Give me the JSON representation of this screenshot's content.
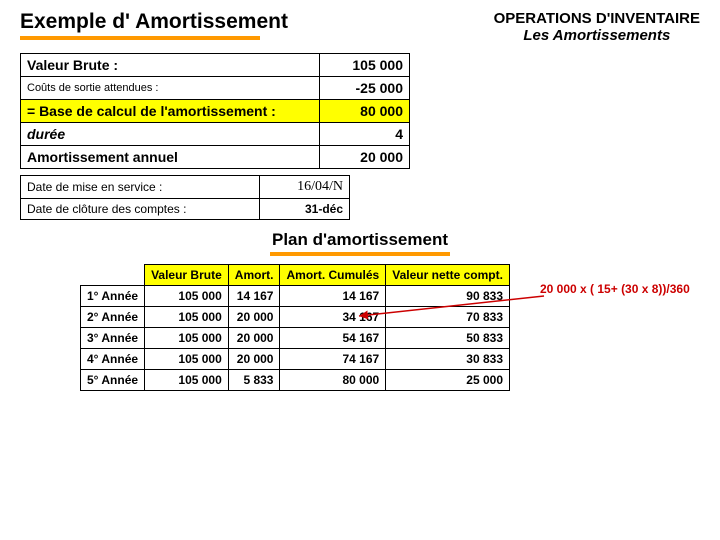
{
  "header": {
    "left_title": "Exemple d' Amortissement",
    "right_line1": "OPERATIONS D'INVENTAIRE",
    "right_line2": "Les Amortissements"
  },
  "calc": {
    "rows": [
      {
        "label": "Valeur Brute :",
        "value": "105 000",
        "classes": "lblrow"
      },
      {
        "label": "Coûts de sortie attendues :",
        "value": "-25 000",
        "classes": "small"
      },
      {
        "label": "= Base de calcul de l'amortissement :",
        "value": "80 000",
        "classes": "yellow-row"
      },
      {
        "label": "durée",
        "value": "4",
        "classes": "italic"
      },
      {
        "label": "Amortissement annuel",
        "value": "20 000",
        "classes": "lblrow"
      }
    ]
  },
  "dates": {
    "rows": [
      {
        "label": "Date de mise en service :",
        "value": "16/04/N",
        "serif": true
      },
      {
        "label": "Date de clôture des comptes :",
        "value": "31-déc",
        "serif": false
      }
    ]
  },
  "plan": {
    "title": "Plan d'amortissement",
    "headers": [
      "",
      "Valeur Brute",
      "Amort.",
      "Amort. Cumulés",
      "Valeur nette compt."
    ],
    "rows": [
      {
        "year": "1° Année",
        "vb": "105 000",
        "am": "14 167",
        "cum": "14 167",
        "vnc": "90 833"
      },
      {
        "year": "2° Année",
        "vb": "105 000",
        "am": "20 000",
        "cum": "34 167",
        "vnc": "70 833"
      },
      {
        "year": "3° Année",
        "vb": "105 000",
        "am": "20 000",
        "cum": "54 167",
        "vnc": "50 833"
      },
      {
        "year": "4° Année",
        "vb": "105 000",
        "am": "20 000",
        "cum": "74 167",
        "vnc": "30 833"
      },
      {
        "year": "5° Année",
        "vb": "105 000",
        "am": "5 833",
        "cum": "80 000",
        "vnc": "25 000"
      }
    ]
  },
  "formula": "20 000 x ( 15+ (30 x 8))/360",
  "colors": {
    "highlight": "#ffff00",
    "underline": "#ff9900",
    "arrow": "#cc0000",
    "text": "#000000",
    "bg": "#ffffff"
  }
}
